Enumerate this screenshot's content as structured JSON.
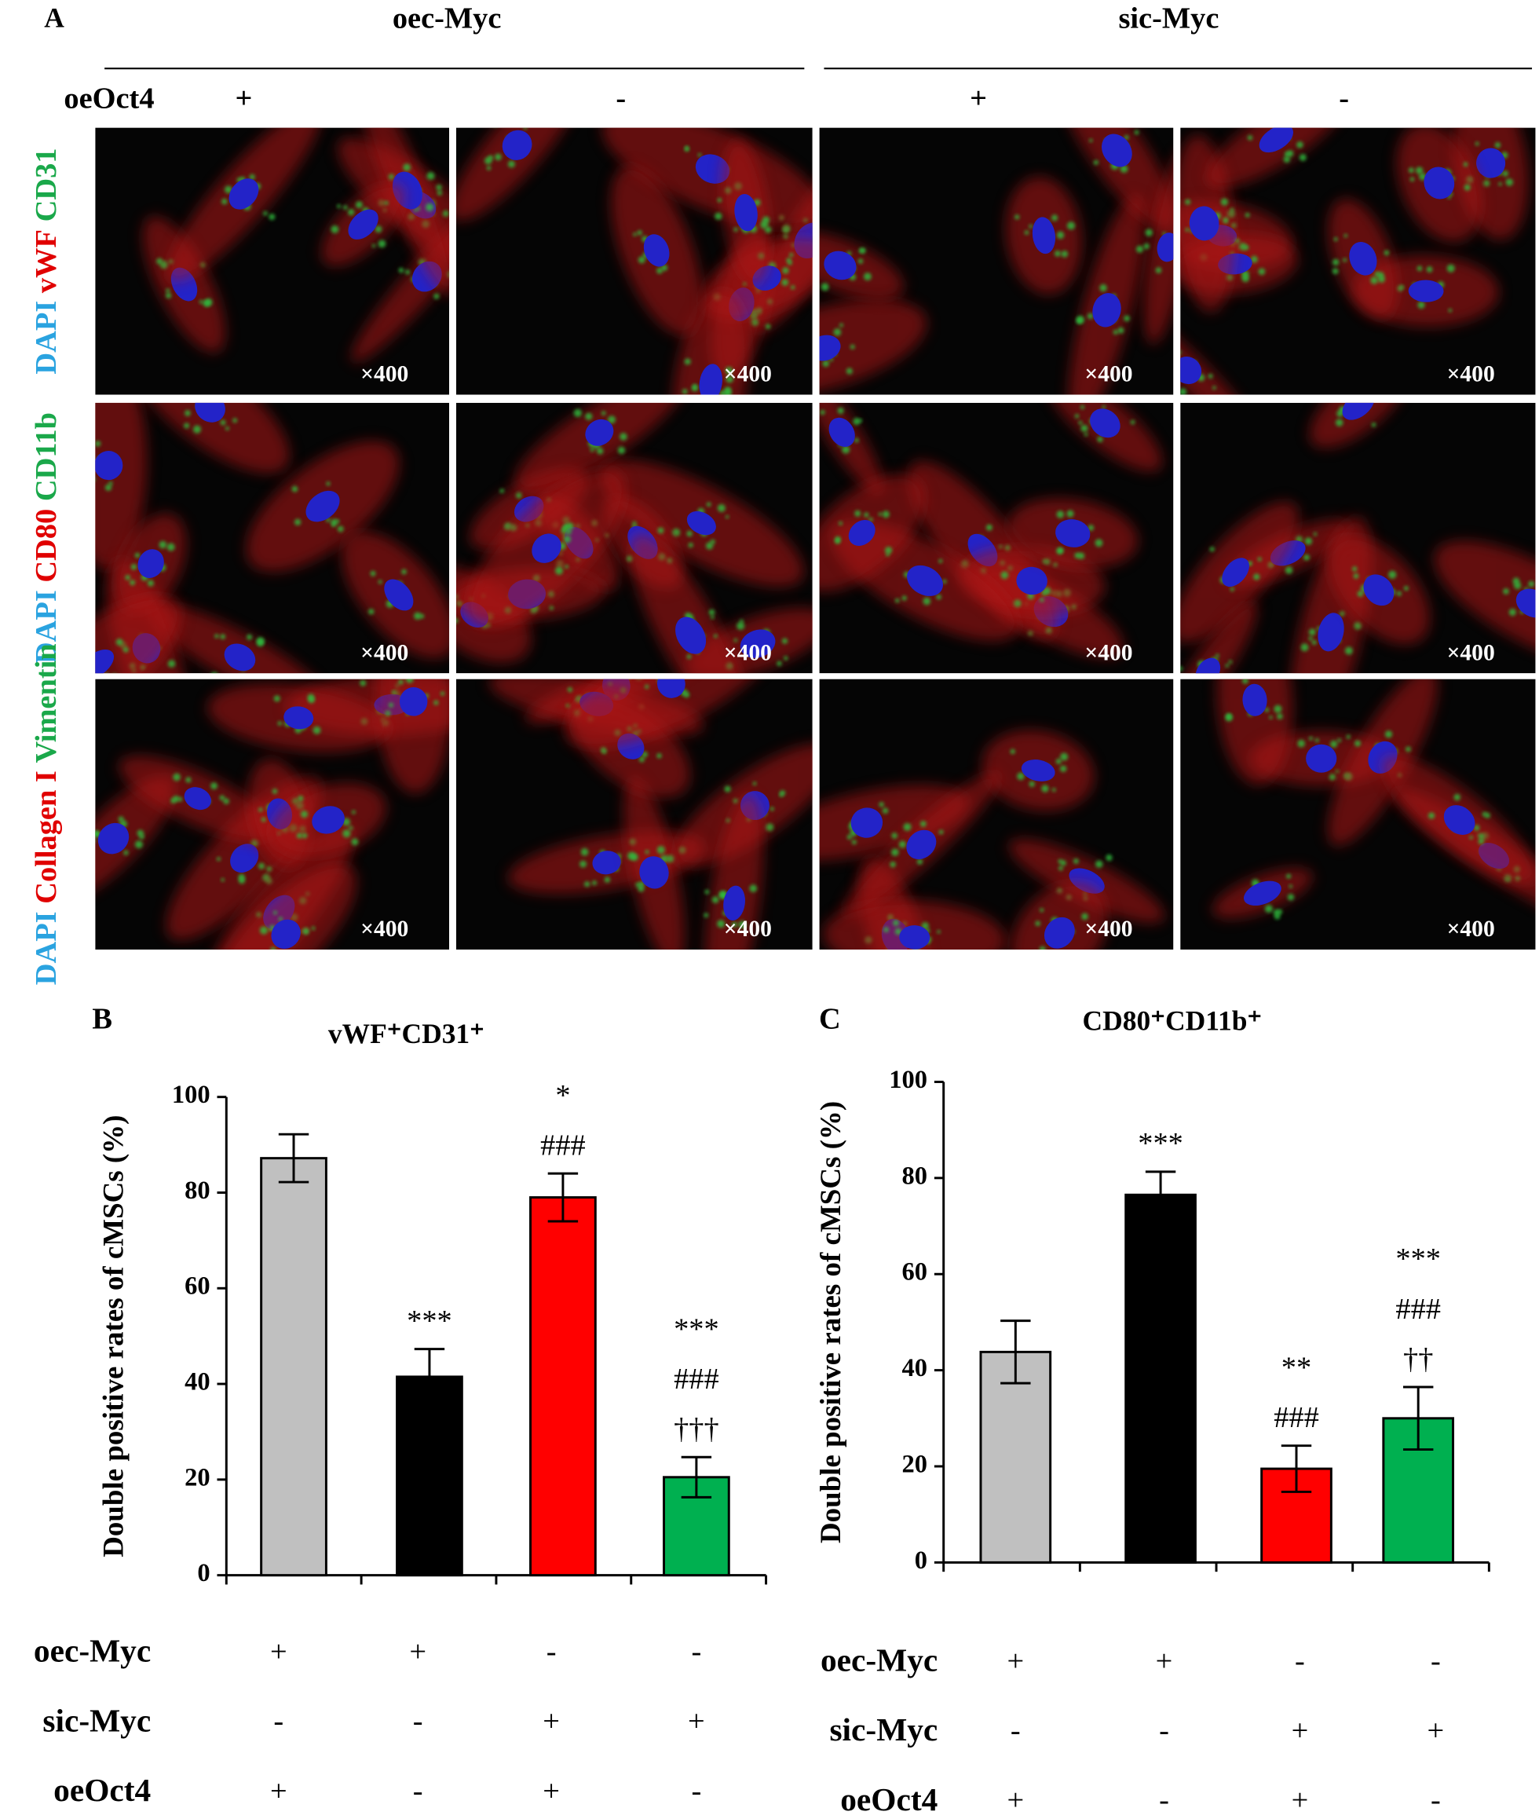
{
  "panel_a": {
    "label": "A",
    "groups": [
      "oec-Myc",
      "sic-Myc"
    ],
    "oct4_name": "oeOct4",
    "oct4_signs": [
      "+",
      "-",
      "+",
      "-"
    ],
    "rows": [
      [
        "DAPI",
        "vWF",
        "CD31"
      ],
      [
        "DAPI",
        "CD80",
        "CD11b"
      ],
      [
        "DAPI",
        "Collagen I",
        "Vimentin"
      ]
    ],
    "magnification": "×400"
  },
  "chart_data": [
    {
      "type": "bar",
      "panel_label": "B",
      "title": "vWF⁺CD31⁺",
      "ylabel": "Double positive rates of cMSCs (%)",
      "values": [
        87.2,
        41.5,
        79,
        20.5
      ],
      "errors": [
        5,
        5.8,
        5,
        4.2
      ],
      "colors": [
        "#c0c0c0",
        "#000000",
        "#ff0000",
        "#00b050"
      ],
      "ylim": [
        0,
        100
      ],
      "yticks": [
        0,
        20,
        40,
        60,
        80,
        100
      ],
      "annotations": [
        [],
        [
          "***"
        ],
        [
          "*",
          "###"
        ],
        [
          "***",
          "###",
          "†††"
        ]
      ],
      "conditions": [
        {
          "name": "oec-Myc",
          "signs": [
            "+",
            "+",
            "-",
            "-"
          ]
        },
        {
          "name": "sic-Myc",
          "signs": [
            "-",
            "-",
            "+",
            "+"
          ]
        },
        {
          "name": "oeOct4",
          "signs": [
            "+",
            "-",
            "+",
            "-"
          ]
        }
      ]
    },
    {
      "type": "bar",
      "panel_label": "C",
      "title": "CD80⁺CD11b⁺",
      "ylabel": "Double positive rates of cMSCs (%)",
      "values": [
        43.8,
        76.5,
        19.5,
        30
      ],
      "errors": [
        6.5,
        4.8,
        4.8,
        6.5
      ],
      "colors": [
        "#c0c0c0",
        "#000000",
        "#ff0000",
        "#00b050"
      ],
      "ylim": [
        0,
        100
      ],
      "yticks": [
        0,
        20,
        40,
        60,
        80,
        100
      ],
      "annotations": [
        [],
        [
          "***"
        ],
        [
          "**",
          "###"
        ],
        [
          "***",
          "###",
          "††"
        ]
      ],
      "conditions": [
        {
          "name": "oec-Myc",
          "signs": [
            "+",
            "+",
            "-",
            "-"
          ]
        },
        {
          "name": "sic-Myc",
          "signs": [
            "-",
            "-",
            "+",
            "+"
          ]
        },
        {
          "name": "oeOct4",
          "signs": [
            "+",
            "-",
            "+",
            "-"
          ]
        }
      ]
    }
  ]
}
